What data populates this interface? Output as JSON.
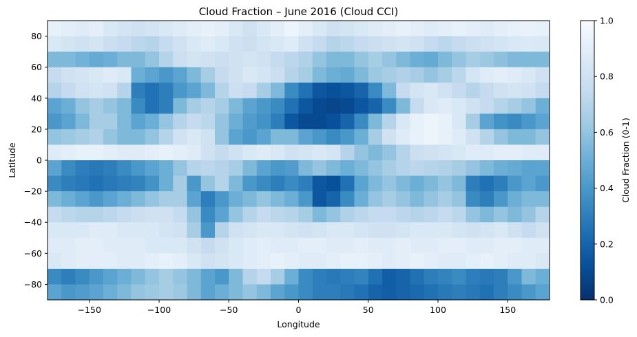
{
  "chart_data": {
    "type": "heatmap",
    "title": "Cloud Fraction – June 2016 (Cloud CCI)",
    "xlabel": "Longitude",
    "ylabel": "Latitude",
    "xlim": [
      -180,
      180
    ],
    "ylim": [
      -90,
      90
    ],
    "xticks": [
      -150,
      -100,
      -50,
      0,
      50,
      100,
      150
    ],
    "yticks": [
      -80,
      -60,
      -40,
      -20,
      0,
      20,
      40,
      60,
      80
    ],
    "xtick_labels": [
      "−150",
      "−100",
      "−50",
      "0",
      "50",
      "100",
      "150"
    ],
    "ytick_labels": [
      "−80",
      "−60",
      "−40",
      "−20",
      "0",
      "20",
      "40",
      "60",
      "80"
    ],
    "grid": false,
    "colormap": "Blues_r",
    "colorbar": {
      "label": "Cloud Fraction (0-1)",
      "range": [
        0,
        1
      ],
      "ticks": [
        0,
        0.2,
        0.4,
        0.6,
        0.8,
        1.0
      ],
      "tick_labels": [
        "0.0",
        "0.2",
        "0.4",
        "0.6",
        "0.8",
        "1.0"
      ],
      "colors": [
        "#08306b",
        "#08519c",
        "#2171b5",
        "#4292c6",
        "#6baed6",
        "#9ecae1",
        "#c6dbef",
        "#deebf7",
        "#f7fbff"
      ]
    },
    "grid_resolution_deg": 10,
    "lat_rows": [
      85,
      75,
      65,
      55,
      45,
      35,
      25,
      15,
      5,
      -5,
      -15,
      -25,
      -35,
      -45,
      -55,
      -65,
      -75,
      -85
    ],
    "lon_cols": [
      -175,
      -165,
      -155,
      -145,
      -135,
      -125,
      -115,
      -105,
      -95,
      -85,
      -75,
      -65,
      -55,
      -45,
      -35,
      -25,
      -15,
      -5,
      5,
      15,
      25,
      35,
      45,
      55,
      65,
      75,
      85,
      95,
      105,
      115,
      125,
      135,
      145,
      155,
      165,
      175
    ],
    "values": [
      [
        0.92,
        0.9,
        0.88,
        0.9,
        0.85,
        0.82,
        0.8,
        0.82,
        0.85,
        0.88,
        0.9,
        0.92,
        0.9,
        0.85,
        0.8,
        0.85,
        0.9,
        0.95,
        0.9,
        0.85,
        0.8,
        0.82,
        0.85,
        0.88,
        0.9,
        0.92,
        0.9,
        0.88,
        0.9,
        0.92,
        0.9,
        0.88,
        0.9,
        0.92,
        0.93,
        0.92
      ],
      [
        0.85,
        0.82,
        0.8,
        0.82,
        0.78,
        0.75,
        0.72,
        0.7,
        0.75,
        0.8,
        0.85,
        0.88,
        0.85,
        0.8,
        0.78,
        0.82,
        0.85,
        0.88,
        0.8,
        0.75,
        0.7,
        0.72,
        0.75,
        0.78,
        0.8,
        0.82,
        0.8,
        0.75,
        0.72,
        0.75,
        0.78,
        0.8,
        0.82,
        0.85,
        0.86,
        0.85
      ],
      [
        0.55,
        0.55,
        0.52,
        0.48,
        0.5,
        0.55,
        0.55,
        0.6,
        0.7,
        0.78,
        0.82,
        0.8,
        0.78,
        0.8,
        0.82,
        0.8,
        0.75,
        0.72,
        0.68,
        0.6,
        0.55,
        0.55,
        0.6,
        0.65,
        0.6,
        0.55,
        0.5,
        0.48,
        0.55,
        0.6,
        0.65,
        0.62,
        0.58,
        0.55,
        0.55,
        0.55
      ],
      [
        0.75,
        0.8,
        0.82,
        0.85,
        0.88,
        0.85,
        0.5,
        0.45,
        0.4,
        0.45,
        0.55,
        0.65,
        0.75,
        0.8,
        0.85,
        0.82,
        0.78,
        0.7,
        0.65,
        0.55,
        0.5,
        0.48,
        0.55,
        0.62,
        0.65,
        0.68,
        0.65,
        0.6,
        0.65,
        0.72,
        0.82,
        0.88,
        0.9,
        0.88,
        0.85,
        0.8
      ],
      [
        0.7,
        0.75,
        0.8,
        0.82,
        0.8,
        0.7,
        0.3,
        0.25,
        0.3,
        0.4,
        0.45,
        0.55,
        0.7,
        0.78,
        0.75,
        0.65,
        0.55,
        0.35,
        0.25,
        0.15,
        0.12,
        0.15,
        0.2,
        0.35,
        0.55,
        0.75,
        0.82,
        0.85,
        0.8,
        0.75,
        0.7,
        0.75,
        0.8,
        0.82,
        0.8,
        0.75
      ],
      [
        0.45,
        0.5,
        0.6,
        0.65,
        0.6,
        0.55,
        0.35,
        0.25,
        0.3,
        0.55,
        0.65,
        0.7,
        0.65,
        0.55,
        0.45,
        0.4,
        0.35,
        0.25,
        0.15,
        0.1,
        0.08,
        0.1,
        0.15,
        0.2,
        0.35,
        0.55,
        0.75,
        0.85,
        0.88,
        0.85,
        0.8,
        0.75,
        0.7,
        0.65,
        0.6,
        0.5
      ],
      [
        0.4,
        0.45,
        0.55,
        0.65,
        0.65,
        0.55,
        0.45,
        0.5,
        0.6,
        0.7,
        0.75,
        0.72,
        0.6,
        0.5,
        0.42,
        0.38,
        0.3,
        0.15,
        0.1,
        0.1,
        0.12,
        0.2,
        0.35,
        0.55,
        0.7,
        0.85,
        0.92,
        0.95,
        0.92,
        0.85,
        0.65,
        0.45,
        0.38,
        0.35,
        0.4,
        0.45
      ],
      [
        0.6,
        0.62,
        0.65,
        0.68,
        0.6,
        0.55,
        0.55,
        0.6,
        0.7,
        0.8,
        0.85,
        0.8,
        0.6,
        0.45,
        0.4,
        0.45,
        0.55,
        0.55,
        0.45,
        0.4,
        0.35,
        0.4,
        0.5,
        0.65,
        0.8,
        0.88,
        0.92,
        0.95,
        0.92,
        0.88,
        0.8,
        0.7,
        0.6,
        0.55,
        0.55,
        0.6
      ],
      [
        0.88,
        0.9,
        0.92,
        0.92,
        0.9,
        0.88,
        0.88,
        0.9,
        0.92,
        0.9,
        0.88,
        0.8,
        0.75,
        0.8,
        0.85,
        0.88,
        0.85,
        0.8,
        0.82,
        0.85,
        0.82,
        0.7,
        0.6,
        0.55,
        0.6,
        0.7,
        0.78,
        0.8,
        0.82,
        0.85,
        0.88,
        0.88,
        0.9,
        0.9,
        0.88,
        0.88
      ],
      [
        0.45,
        0.35,
        0.3,
        0.28,
        0.3,
        0.35,
        0.4,
        0.45,
        0.5,
        0.6,
        0.7,
        0.72,
        0.7,
        0.65,
        0.55,
        0.45,
        0.4,
        0.42,
        0.55,
        0.6,
        0.55,
        0.5,
        0.55,
        0.6,
        0.65,
        0.7,
        0.72,
        0.7,
        0.68,
        0.65,
        0.6,
        0.55,
        0.5,
        0.48,
        0.45,
        0.45
      ],
      [
        0.35,
        0.3,
        0.28,
        0.25,
        0.28,
        0.3,
        0.32,
        0.38,
        0.5,
        0.65,
        0.4,
        0.6,
        0.7,
        0.55,
        0.4,
        0.35,
        0.3,
        0.35,
        0.3,
        0.15,
        0.12,
        0.25,
        0.45,
        0.55,
        0.6,
        0.55,
        0.5,
        0.55,
        0.6,
        0.55,
        0.3,
        0.25,
        0.3,
        0.4,
        0.45,
        0.4
      ],
      [
        0.55,
        0.5,
        0.45,
        0.4,
        0.45,
        0.5,
        0.55,
        0.6,
        0.65,
        0.65,
        0.45,
        0.3,
        0.4,
        0.5,
        0.55,
        0.6,
        0.55,
        0.5,
        0.4,
        0.15,
        0.2,
        0.35,
        0.5,
        0.6,
        0.65,
        0.6,
        0.55,
        0.6,
        0.65,
        0.6,
        0.35,
        0.3,
        0.4,
        0.5,
        0.55,
        0.55
      ],
      [
        0.75,
        0.72,
        0.7,
        0.7,
        0.72,
        0.75,
        0.78,
        0.8,
        0.8,
        0.75,
        0.6,
        0.35,
        0.45,
        0.6,
        0.7,
        0.75,
        0.72,
        0.7,
        0.65,
        0.55,
        0.6,
        0.68,
        0.72,
        0.75,
        0.75,
        0.72,
        0.7,
        0.72,
        0.75,
        0.72,
        0.6,
        0.55,
        0.6,
        0.55,
        0.6,
        0.7
      ],
      [
        0.85,
        0.85,
        0.85,
        0.88,
        0.88,
        0.85,
        0.85,
        0.85,
        0.82,
        0.8,
        0.65,
        0.4,
        0.7,
        0.8,
        0.82,
        0.85,
        0.85,
        0.82,
        0.8,
        0.82,
        0.85,
        0.85,
        0.82,
        0.8,
        0.8,
        0.82,
        0.85,
        0.85,
        0.85,
        0.82,
        0.8,
        0.82,
        0.85,
        0.8,
        0.75,
        0.8
      ],
      [
        0.88,
        0.88,
        0.9,
        0.9,
        0.88,
        0.88,
        0.88,
        0.85,
        0.85,
        0.85,
        0.8,
        0.75,
        0.8,
        0.85,
        0.88,
        0.9,
        0.88,
        0.88,
        0.9,
        0.9,
        0.88,
        0.88,
        0.9,
        0.88,
        0.88,
        0.9,
        0.88,
        0.88,
        0.9,
        0.9,
        0.88,
        0.88,
        0.9,
        0.9,
        0.88,
        0.88
      ],
      [
        0.85,
        0.88,
        0.9,
        0.9,
        0.9,
        0.88,
        0.88,
        0.9,
        0.92,
        0.9,
        0.85,
        0.8,
        0.82,
        0.85,
        0.88,
        0.9,
        0.92,
        0.9,
        0.88,
        0.88,
        0.9,
        0.92,
        0.92,
        0.9,
        0.88,
        0.9,
        0.92,
        0.9,
        0.88,
        0.88,
        0.9,
        0.92,
        0.9,
        0.88,
        0.88,
        0.85
      ],
      [
        0.35,
        0.3,
        0.35,
        0.4,
        0.45,
        0.5,
        0.55,
        0.6,
        0.65,
        0.6,
        0.55,
        0.45,
        0.4,
        0.55,
        0.7,
        0.75,
        0.65,
        0.5,
        0.35,
        0.3,
        0.28,
        0.3,
        0.32,
        0.25,
        0.18,
        0.2,
        0.25,
        0.3,
        0.32,
        0.35,
        0.3,
        0.28,
        0.3,
        0.4,
        0.55,
        0.5
      ],
      [
        0.45,
        0.4,
        0.42,
        0.45,
        0.5,
        0.55,
        0.6,
        0.62,
        0.65,
        0.62,
        0.55,
        0.45,
        0.5,
        0.55,
        0.6,
        0.55,
        0.45,
        0.4,
        0.35,
        0.3,
        0.3,
        0.28,
        0.25,
        0.2,
        0.18,
        0.2,
        0.22,
        0.25,
        0.28,
        0.3,
        0.28,
        0.25,
        0.3,
        0.35,
        0.4,
        0.45
      ]
    ]
  }
}
